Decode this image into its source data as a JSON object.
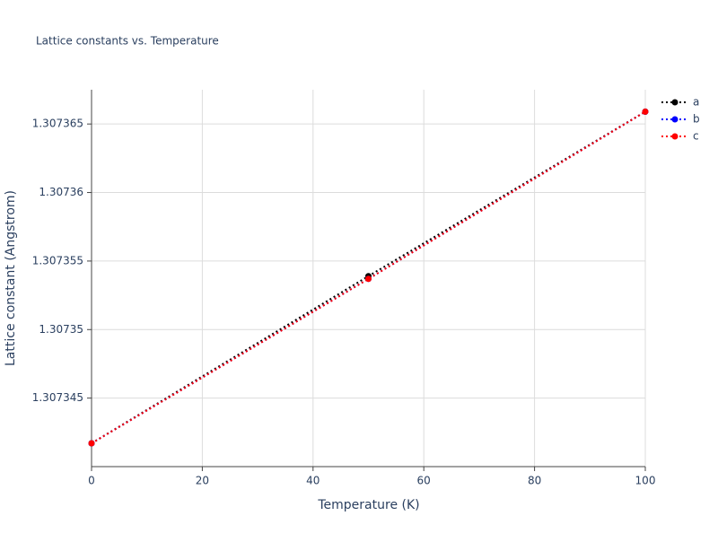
{
  "chart_data": {
    "type": "line",
    "title": "Lattice constants vs. Temperature",
    "x_label": "Temperature (K)",
    "y_label": "Lattice constant (Angstrom)",
    "x": [
      0,
      50,
      100
    ],
    "series": [
      {
        "name": "a",
        "color": "#000000",
        "values": [
          1.3073417,
          1.3073539,
          1.3073659
        ]
      },
      {
        "name": "b",
        "color": "#0000ff",
        "values": [
          1.3073417,
          1.3073537,
          1.3073659
        ]
      },
      {
        "name": "c",
        "color": "#ff0000",
        "values": [
          1.3073417,
          1.3073537,
          1.3073659
        ]
      }
    ],
    "xlim": [
      0,
      100
    ],
    "xticks": [
      0,
      20,
      40,
      60,
      80,
      100
    ],
    "ylim": [
      1.30734,
      1.3073675
    ],
    "yticks": [
      1.307345,
      1.30735,
      1.307355,
      1.30736,
      1.307365
    ],
    "grid": true
  }
}
